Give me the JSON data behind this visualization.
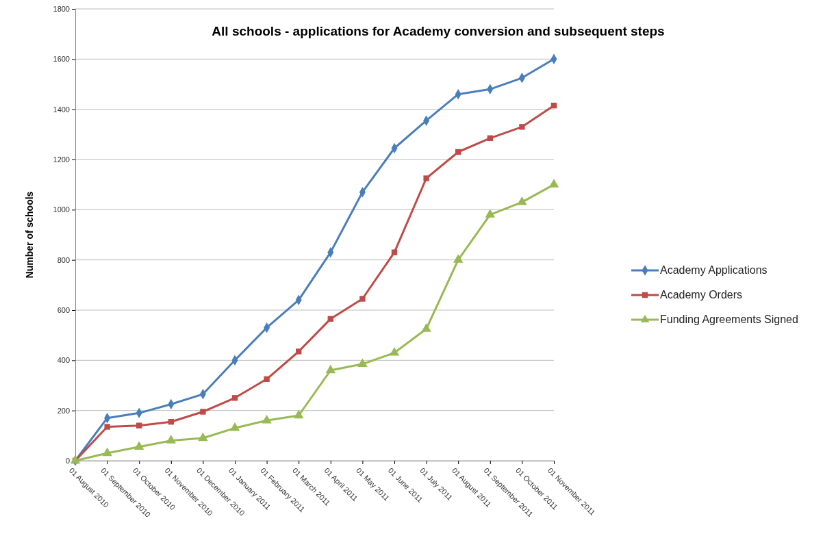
{
  "chart_data": {
    "type": "line",
    "title": "All schools - applications for Academy conversion and subsequent steps",
    "ylabel": "Number of schools",
    "categories": [
      "01 August 2010",
      "01 September 2010",
      "01 October 2010",
      "01 November 2010",
      "01 December 2010",
      "01 January 2011",
      "01 February 2011",
      "01 March 2011",
      "01 April 2011",
      "01 May 2011",
      "01 June 2011",
      "01 July 2011",
      "01 August 2011",
      "01 September 2011",
      "01 October 2011",
      "01 November 2011"
    ],
    "series": [
      {
        "name": "Academy Applications",
        "color": "#4a7ebb",
        "marker": "diamond",
        "values": [
          0,
          170,
          190,
          225,
          265,
          400,
          530,
          640,
          830,
          1070,
          1245,
          1355,
          1460,
          1480,
          1525,
          1600
        ]
      },
      {
        "name": "Academy Orders",
        "color": "#be4b48",
        "marker": "square",
        "values": [
          0,
          135,
          140,
          155,
          195,
          250,
          325,
          435,
          565,
          645,
          830,
          1125,
          1230,
          1285,
          1330,
          1415
        ]
      },
      {
        "name": "Funding Agreements Signed",
        "color": "#98b954",
        "marker": "triangle",
        "values": [
          0,
          30,
          55,
          80,
          90,
          130,
          160,
          180,
          360,
          385,
          430,
          525,
          800,
          980,
          1030,
          1100
        ]
      }
    ],
    "ylim": [
      0,
      1800
    ],
    "yticks": [
      0,
      200,
      400,
      600,
      800,
      1000,
      1200,
      1400,
      1600,
      1800
    ],
    "grid": "y",
    "legend": "right",
    "line_style": "solid"
  }
}
